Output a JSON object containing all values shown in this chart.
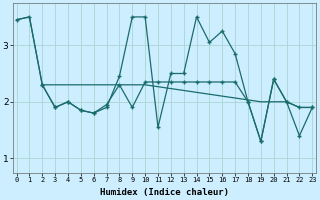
{
  "xlabel": "Humidex (Indice chaleur)",
  "background_color": "#cceeff",
  "grid_color": "#aad4d4",
  "line_color": "#1a6b6b",
  "line1_x": [
    0,
    1,
    2,
    3,
    4,
    5,
    6,
    7,
    8,
    9,
    10,
    11,
    12,
    13,
    14,
    15,
    16,
    17,
    18,
    19,
    20,
    21,
    22,
    23
  ],
  "line1_y": [
    3.45,
    3.5,
    2.3,
    1.9,
    2.0,
    1.85,
    1.8,
    1.9,
    2.45,
    3.5,
    3.5,
    1.55,
    2.5,
    2.5,
    3.5,
    3.05,
    3.25,
    2.85,
    2.0,
    1.3,
    2.4,
    2.0,
    1.4,
    1.9
  ],
  "line2_x": [
    2,
    3,
    4,
    5,
    6,
    7,
    8,
    9,
    10,
    11,
    12,
    13,
    14,
    15,
    16,
    17,
    18,
    19,
    20,
    21,
    22,
    23
  ],
  "line2_y": [
    2.3,
    1.9,
    2.0,
    1.85,
    1.8,
    1.95,
    2.3,
    1.9,
    2.35,
    2.35,
    2.35,
    2.35,
    2.35,
    2.35,
    2.35,
    2.35,
    2.0,
    1.3,
    2.4,
    2.0,
    1.9,
    1.9
  ],
  "line3_x": [
    0,
    1,
    2,
    3,
    4,
    5,
    6,
    7,
    8,
    9,
    10,
    19,
    20,
    21,
    22,
    23
  ],
  "line3_y": [
    3.45,
    3.5,
    2.3,
    2.3,
    2.3,
    2.3,
    2.3,
    2.3,
    2.3,
    2.3,
    2.3,
    2.0,
    2.0,
    2.0,
    1.9,
    1.9
  ],
  "ylim": [
    0.75,
    3.75
  ],
  "xlim": [
    -0.3,
    23.3
  ],
  "yticks": [
    1,
    2,
    3
  ],
  "xticks": [
    0,
    1,
    2,
    3,
    4,
    5,
    6,
    7,
    8,
    9,
    10,
    11,
    12,
    13,
    14,
    15,
    16,
    17,
    18,
    19,
    20,
    21,
    22,
    23
  ]
}
